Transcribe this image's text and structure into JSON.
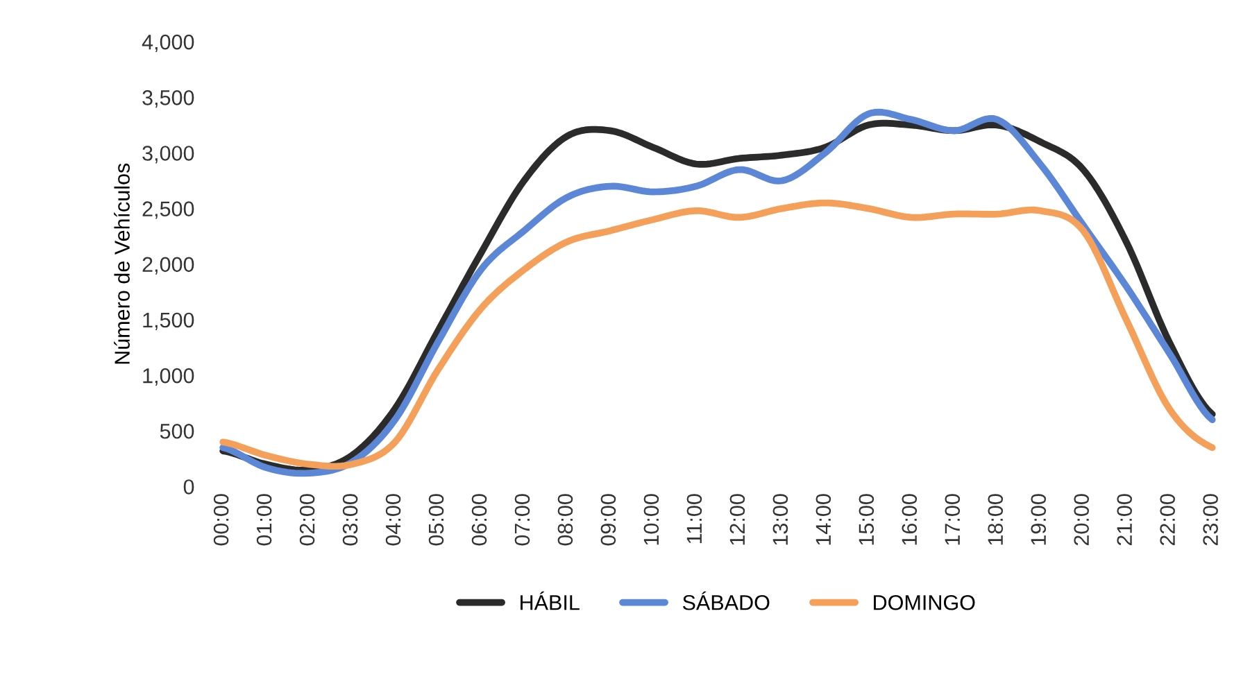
{
  "chart_data": {
    "type": "line",
    "ylabel": "Número de Vehículos",
    "categories": [
      "00:00",
      "01:00",
      "02:00",
      "03:00",
      "04:00",
      "05:00",
      "06:00",
      "07:00",
      "08:00",
      "09:00",
      "10:00",
      "11:00",
      "12:00",
      "13:00",
      "14:00",
      "15:00",
      "16:00",
      "17:00",
      "18:00",
      "19:00",
      "20:00",
      "21:00",
      "22:00",
      "23:00"
    ],
    "series": [
      {
        "name": "HÁBIL",
        "color": "#2b2b2b",
        "values": [
          320,
          200,
          150,
          280,
          700,
          1400,
          2100,
          2750,
          3150,
          3200,
          3050,
          2900,
          2950,
          2980,
          3050,
          3250,
          3250,
          3200,
          3250,
          3100,
          2850,
          2200,
          1300,
          650
        ]
      },
      {
        "name": "SÁBADO",
        "color": "#5b87d6",
        "values": [
          350,
          170,
          120,
          220,
          600,
          1300,
          1950,
          2300,
          2600,
          2700,
          2650,
          2700,
          2850,
          2750,
          3000,
          3350,
          3300,
          3200,
          3300,
          2900,
          2350,
          1800,
          1200,
          600
        ]
      },
      {
        "name": "DOMINGO",
        "color": "#f4a05a",
        "values": [
          400,
          280,
          200,
          200,
          400,
          1050,
          1600,
          1950,
          2200,
          2300,
          2400,
          2480,
          2420,
          2500,
          2550,
          2500,
          2420,
          2450,
          2450,
          2480,
          2300,
          1500,
          700,
          350
        ]
      }
    ],
    "ylim": [
      0,
      4000
    ],
    "yticks": [
      {
        "value": 0,
        "label": "0"
      },
      {
        "value": 500,
        "label": "500"
      },
      {
        "value": 1000,
        "label": "1,000"
      },
      {
        "value": 1500,
        "label": "1,500"
      },
      {
        "value": 2000,
        "label": "2,000"
      },
      {
        "value": 2500,
        "label": "2,500"
      },
      {
        "value": 3000,
        "label": "3,000"
      },
      {
        "value": 3500,
        "label": "3,500"
      },
      {
        "value": 4000,
        "label": "4,000"
      }
    ],
    "grid": false,
    "legend": "bottom",
    "marker": "none",
    "line_style": "solid"
  }
}
